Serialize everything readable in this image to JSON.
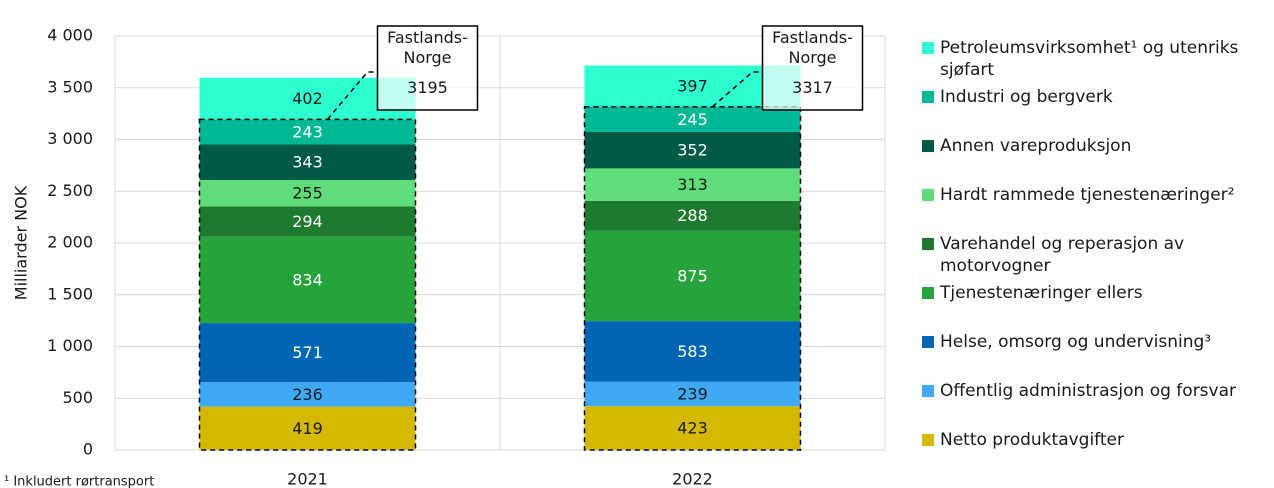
{
  "chart_data": {
    "type": "stacked_bar",
    "y_label": "Milliarder NOK",
    "categories": [
      "2021",
      "2022"
    ],
    "series": [
      {
        "name": "Netto produktavgifter",
        "color": "#d4b900",
        "label_color": "#1a1a1a",
        "values": [
          419,
          423
        ]
      },
      {
        "name": "Offentlig administrasjon og forsvar",
        "color": "#3fa9f5",
        "label_color": "#1a1a1a",
        "values": [
          236,
          239
        ]
      },
      {
        "name": "Helse, omsorg og undervisning³",
        "color": "#0066b3",
        "label_color": "#ffffff",
        "values": [
          571,
          583
        ]
      },
      {
        "name": "Tjenestenæringer ellers",
        "color": "#26a33b",
        "label_color": "#ffffff",
        "values": [
          834,
          875
        ]
      },
      {
        "name": "Varehandel og reperasjon av motorvogner",
        "color": "#1e7a2f",
        "label_color": "#ffffff",
        "values": [
          294,
          288
        ]
      },
      {
        "name": "Hardt rammede tjenestenæringer²",
        "color": "#5fdd7a",
        "label_color": "#1a1a1a",
        "values": [
          255,
          313
        ]
      },
      {
        "name": "Annen vareproduksjon",
        "color": "#005a46",
        "label_color": "#ffffff",
        "values": [
          343,
          352
        ]
      },
      {
        "name": "Industri og bergverk",
        "color": "#00b894",
        "label_color": "#ffffff",
        "values": [
          243,
          245
        ]
      },
      {
        "name": "Petroleumsvirksomhet¹ og utenriks sjøfart",
        "color": "#2effd0",
        "label_color": "#1a1a1a",
        "values": [
          402,
          397
        ]
      }
    ],
    "annotations": [
      {
        "text": "Fastlands-Norge",
        "value": 3195
      },
      {
        "text": "Fastlands-Norge",
        "value": 3317
      }
    ],
    "ylim": [
      0,
      4000
    ],
    "yticks": [
      0,
      500,
      {
        "value": 1000,
        "label": "1 000"
      },
      {
        "value": 1500,
        "label": "1 500"
      },
      {
        "value": 2000,
        "label": "2 000"
      },
      {
        "value": 2500,
        "label": "2 500"
      },
      {
        "value": 3000,
        "label": "3 000"
      },
      {
        "value": 3500,
        "label": "3 500"
      },
      {
        "value": 4000,
        "label": "4 000"
      }
    ],
    "grid": true,
    "footnote": "¹ Inkludert rørtransport"
  }
}
